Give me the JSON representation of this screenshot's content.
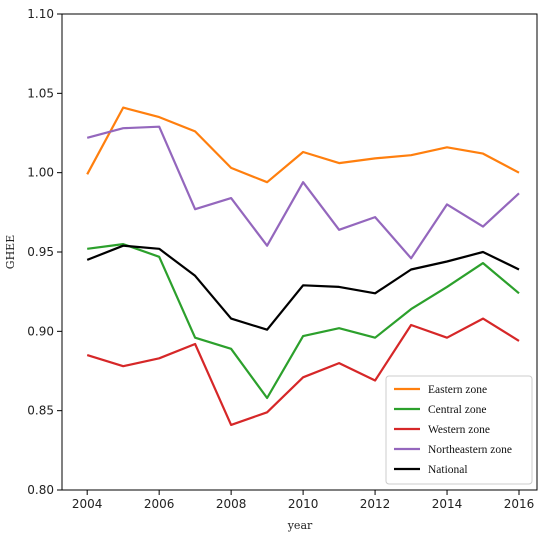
{
  "chart_data": {
    "type": "line",
    "xlabel": "year",
    "ylabel": "GHEE",
    "xlim": [
      2003.3,
      2016.5
    ],
    "ylim": [
      0.8,
      1.1
    ],
    "x_ticks": [
      2004,
      2006,
      2008,
      2010,
      2012,
      2014,
      2016
    ],
    "y_ticks": [
      0.8,
      0.85,
      0.9,
      0.95,
      1.0,
      1.05,
      1.1
    ],
    "y_tick_labels": [
      "0.80",
      "0.85",
      "0.90",
      "0.95",
      "1.00",
      "1.05",
      "1.10"
    ],
    "grid": false,
    "legend_position": "lower-right",
    "x": [
      2004,
      2005,
      2006,
      2007,
      2008,
      2009,
      2010,
      2011,
      2012,
      2013,
      2014,
      2015,
      2016
    ],
    "series": [
      {
        "name": "Eastern zone",
        "color": "#ff7f0e",
        "values": [
          0.999,
          1.041,
          1.035,
          1.026,
          1.003,
          0.994,
          1.013,
          1.006,
          1.009,
          1.011,
          1.016,
          1.012,
          1.0
        ]
      },
      {
        "name": "Central zone",
        "color": "#2ca02c",
        "values": [
          0.952,
          0.955,
          0.947,
          0.896,
          0.889,
          0.858,
          0.897,
          0.902,
          0.896,
          0.914,
          0.928,
          0.943,
          0.924
        ]
      },
      {
        "name": "Western zone",
        "color": "#d62728",
        "values": [
          0.885,
          0.878,
          0.883,
          0.892,
          0.841,
          0.849,
          0.871,
          0.88,
          0.869,
          0.904,
          0.896,
          0.908,
          0.894
        ]
      },
      {
        "name": "Northeastern zone",
        "color": "#9467bd",
        "values": [
          1.022,
          1.028,
          1.029,
          0.977,
          0.984,
          0.954,
          0.994,
          0.964,
          0.972,
          0.946,
          0.98,
          0.966,
          0.987
        ]
      },
      {
        "name": "National",
        "color": "#000000",
        "values": [
          0.945,
          0.954,
          0.952,
          0.935,
          0.908,
          0.901,
          0.929,
          0.928,
          0.924,
          0.939,
          0.944,
          0.95,
          0.939
        ]
      }
    ]
  }
}
